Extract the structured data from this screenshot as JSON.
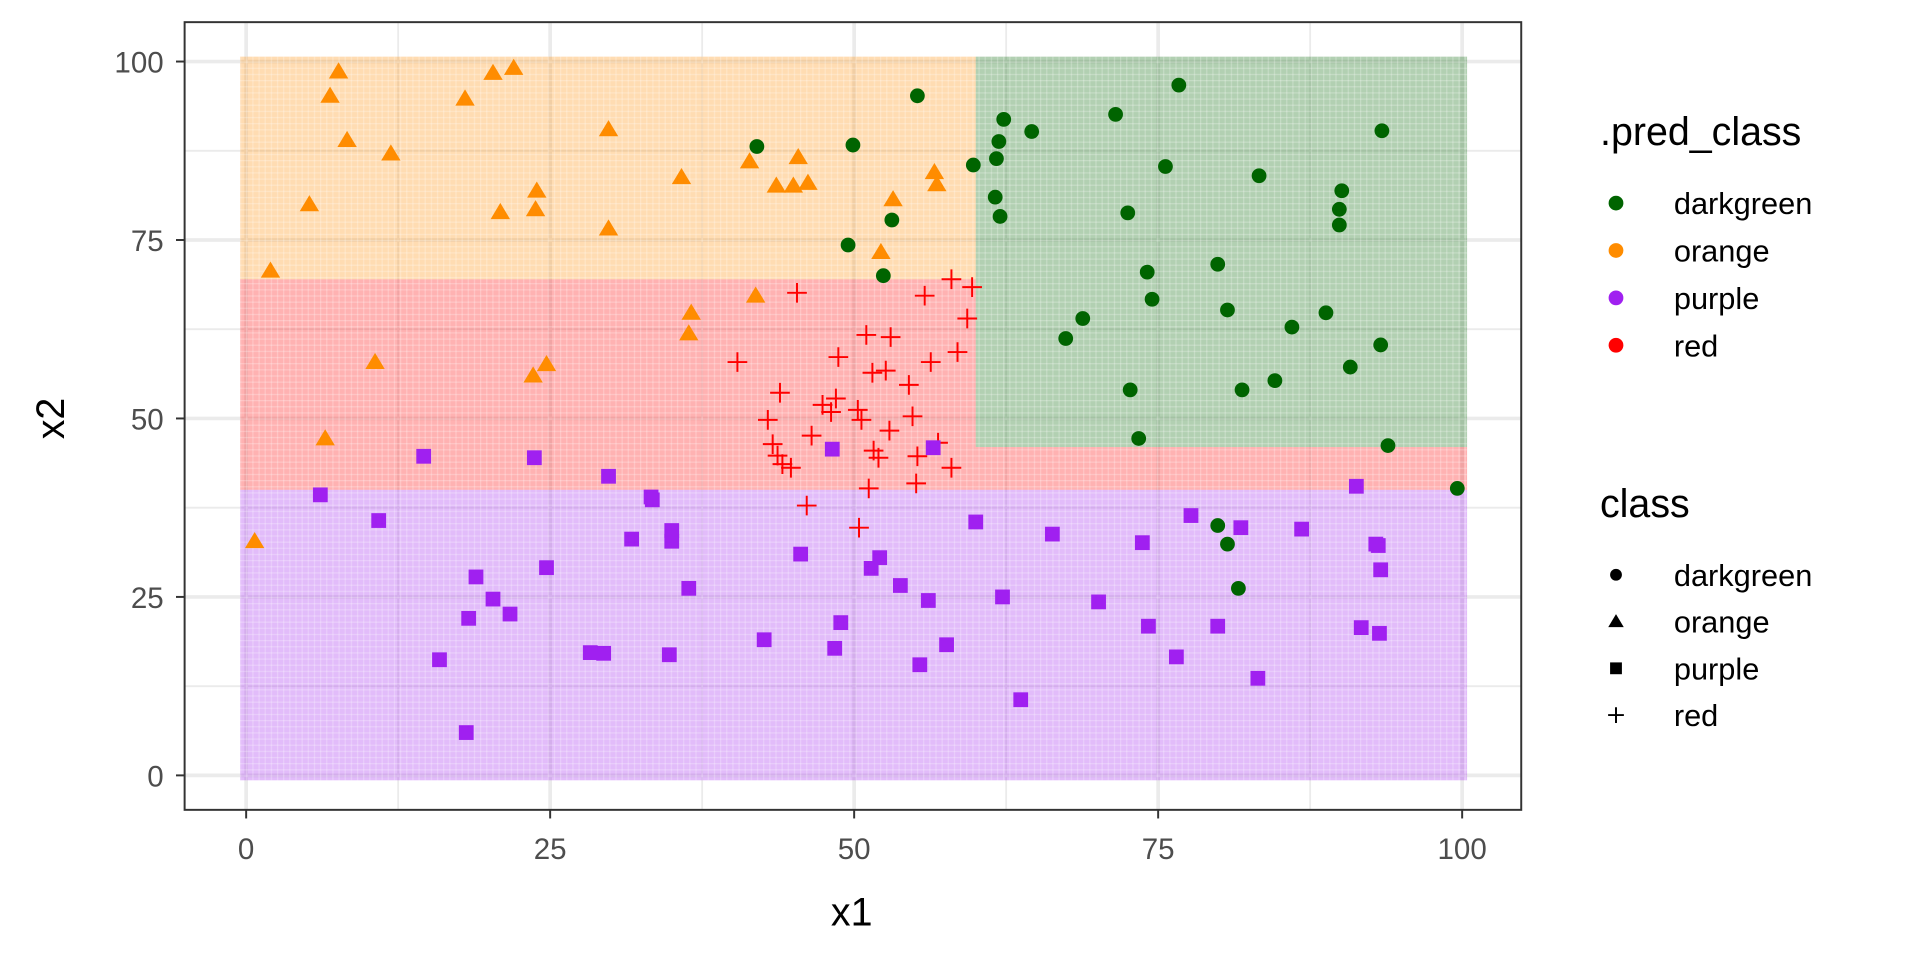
{
  "chart_data": {
    "type": "scatter",
    "xlabel": "x1",
    "ylabel": "x2",
    "xlim": [
      0,
      100
    ],
    "ylim": [
      0,
      100
    ],
    "x_ticks": [
      "0",
      "25",
      "50",
      "75",
      "100"
    ],
    "y_ticks": [
      "0",
      "25",
      "50",
      "75",
      "100"
    ],
    "grid": true,
    "colors": {
      "darkgreen": "#006400",
      "orange": "#FF8C00",
      "purple": "#A020F0",
      "red": "#FF0000"
    },
    "regions": [
      {
        "pred_class": "orange",
        "x": [
          0,
          60
        ],
        "y": [
          69.5,
          100
        ]
      },
      {
        "pred_class": "red",
        "x": [
          0,
          60
        ],
        "y": [
          40,
          69.5
        ]
      },
      {
        "pred_class": "darkgreen",
        "x": [
          60,
          100
        ],
        "y": [
          46,
          100
        ]
      },
      {
        "pred_class": "red",
        "x": [
          60,
          100
        ],
        "y": [
          40,
          46
        ]
      },
      {
        "pred_class": "purple",
        "x": [
          0,
          100
        ],
        "y": [
          0,
          40
        ]
      }
    ],
    "legend_pred_class": {
      "title": ".pred_class",
      "position": "right",
      "items": [
        "darkgreen",
        "orange",
        "purple",
        "red"
      ]
    },
    "legend_class": {
      "title": "class",
      "position": "right",
      "items": [
        "darkgreen",
        "orange",
        "purple",
        "red"
      ],
      "shapes": [
        "circle",
        "triangle",
        "square",
        "cross"
      ]
    },
    "series": [
      {
        "name": "darkgreen",
        "pred": "darkgreen",
        "shape": "circle",
        "points": [
          [
            42.0,
            88.1
          ],
          [
            49.9,
            88.3
          ],
          [
            55.2,
            95.2
          ],
          [
            53.1,
            77.8
          ],
          [
            49.5,
            74.3
          ],
          [
            52.4,
            70.0
          ],
          [
            59.8,
            85.5
          ],
          [
            61.7,
            86.4
          ],
          [
            61.9,
            88.8
          ],
          [
            62.3,
            91.9
          ],
          [
            64.6,
            90.2
          ],
          [
            61.6,
            81.0
          ],
          [
            62.0,
            78.3
          ],
          [
            71.5,
            92.6
          ],
          [
            76.7,
            96.7
          ],
          [
            75.6,
            85.3
          ],
          [
            83.3,
            84.0
          ],
          [
            90.1,
            81.9
          ],
          [
            89.9,
            79.3
          ],
          [
            89.9,
            77.1
          ],
          [
            93.4,
            90.3
          ],
          [
            72.5,
            78.8
          ],
          [
            74.1,
            70.5
          ],
          [
            79.9,
            71.6
          ],
          [
            74.5,
            66.7
          ],
          [
            80.7,
            65.2
          ],
          [
            68.8,
            64.0
          ],
          [
            67.4,
            61.2
          ],
          [
            86.0,
            62.8
          ],
          [
            88.8,
            64.8
          ],
          [
            93.3,
            60.3
          ],
          [
            90.8,
            57.2
          ],
          [
            72.7,
            54.0
          ],
          [
            81.9,
            54.0
          ],
          [
            84.6,
            55.3
          ],
          [
            73.4,
            47.2
          ],
          [
            93.9,
            46.2
          ],
          [
            99.6,
            40.2
          ],
          [
            79.9,
            35.0
          ],
          [
            80.7,
            32.4
          ],
          [
            81.6,
            26.2
          ]
        ]
      },
      {
        "name": "orange",
        "pred": "orange",
        "shape": "triangle",
        "points": [
          [
            7.6,
            98.6
          ],
          [
            6.9,
            95.2
          ],
          [
            8.3,
            89.0
          ],
          [
            18.0,
            94.8
          ],
          [
            20.3,
            98.4
          ],
          [
            22.0,
            99.1
          ],
          [
            11.9,
            87.1
          ],
          [
            5.2,
            80.0
          ],
          [
            20.9,
            78.9
          ],
          [
            23.9,
            81.9
          ],
          [
            23.8,
            79.3
          ],
          [
            29.8,
            90.5
          ],
          [
            29.8,
            76.6
          ],
          [
            2.0,
            70.7
          ],
          [
            35.8,
            83.8
          ],
          [
            41.4,
            86.0
          ],
          [
            43.6,
            82.6
          ],
          [
            45.4,
            86.6
          ],
          [
            45.0,
            82.6
          ],
          [
            46.2,
            83.0
          ],
          [
            53.2,
            80.7
          ],
          [
            52.2,
            73.3
          ],
          [
            56.8,
            82.8
          ],
          [
            56.6,
            84.5
          ],
          [
            41.9,
            67.2
          ],
          [
            36.6,
            64.8
          ],
          [
            36.4,
            61.9
          ],
          [
            10.6,
            57.9
          ],
          [
            24.7,
            57.6
          ],
          [
            23.6,
            56.0
          ],
          [
            6.5,
            47.2
          ],
          [
            0.7,
            32.8
          ]
        ]
      },
      {
        "name": "red",
        "pred": "red",
        "shape": "cross",
        "points": [
          [
            45.3,
            67.6
          ],
          [
            55.8,
            67.2
          ],
          [
            58.0,
            69.5
          ],
          [
            59.7,
            68.4
          ],
          [
            59.3,
            64.0
          ],
          [
            51.0,
            61.7
          ],
          [
            53.0,
            61.4
          ],
          [
            48.7,
            58.6
          ],
          [
            56.3,
            57.9
          ],
          [
            58.5,
            59.3
          ],
          [
            40.4,
            57.9
          ],
          [
            43.9,
            53.6
          ],
          [
            51.5,
            56.4
          ],
          [
            52.6,
            56.7
          ],
          [
            54.5,
            54.7
          ],
          [
            47.4,
            51.9
          ],
          [
            48.5,
            52.8
          ],
          [
            48.1,
            50.9
          ],
          [
            50.3,
            51.2
          ],
          [
            50.6,
            49.8
          ],
          [
            42.9,
            49.8
          ],
          [
            54.8,
            50.3
          ],
          [
            52.9,
            48.3
          ],
          [
            43.3,
            46.4
          ],
          [
            43.7,
            44.8
          ],
          [
            46.5,
            47.6
          ],
          [
            51.6,
            45.5
          ],
          [
            44.1,
            43.6
          ],
          [
            44.8,
            43.1
          ],
          [
            52.0,
            44.5
          ],
          [
            58.0,
            43.1
          ],
          [
            55.2,
            44.7
          ],
          [
            55.1,
            40.9
          ],
          [
            51.2,
            40.2
          ],
          [
            46.1,
            37.8
          ],
          [
            50.4,
            34.7
          ],
          [
            56.9,
            46.6
          ]
        ]
      },
      {
        "name": "purple",
        "pred": "purple",
        "shape": "square",
        "points": [
          [
            14.6,
            44.7
          ],
          [
            23.7,
            44.5
          ],
          [
            6.1,
            39.3
          ],
          [
            10.9,
            35.7
          ],
          [
            29.8,
            41.9
          ],
          [
            33.3,
            39.0
          ],
          [
            33.4,
            38.6
          ],
          [
            48.2,
            45.7
          ],
          [
            56.5,
            45.9
          ],
          [
            35.0,
            34.3
          ],
          [
            35.0,
            32.8
          ],
          [
            31.7,
            33.1
          ],
          [
            60.0,
            35.5
          ],
          [
            66.3,
            33.8
          ],
          [
            77.7,
            36.4
          ],
          [
            81.8,
            34.7
          ],
          [
            86.8,
            34.5
          ],
          [
            91.3,
            40.5
          ],
          [
            92.9,
            32.4
          ],
          [
            93.1,
            32.2
          ],
          [
            93.3,
            28.8
          ],
          [
            73.7,
            32.6
          ],
          [
            45.6,
            31.0
          ],
          [
            52.1,
            30.5
          ],
          [
            51.4,
            29.0
          ],
          [
            53.8,
            26.6
          ],
          [
            24.7,
            29.1
          ],
          [
            36.4,
            26.2
          ],
          [
            18.9,
            27.8
          ],
          [
            20.3,
            24.7
          ],
          [
            21.7,
            22.6
          ],
          [
            18.3,
            22.0
          ],
          [
            15.9,
            16.2
          ],
          [
            28.3,
            17.2
          ],
          [
            29.4,
            17.1
          ],
          [
            34.8,
            16.9
          ],
          [
            42.6,
            19.0
          ],
          [
            48.9,
            21.4
          ],
          [
            48.4,
            17.8
          ],
          [
            56.1,
            24.5
          ],
          [
            62.2,
            25.0
          ],
          [
            70.1,
            24.3
          ],
          [
            57.6,
            18.3
          ],
          [
            55.4,
            15.5
          ],
          [
            74.2,
            20.9
          ],
          [
            79.9,
            20.9
          ],
          [
            76.5,
            16.6
          ],
          [
            91.7,
            20.7
          ],
          [
            93.2,
            19.9
          ],
          [
            83.2,
            13.6
          ],
          [
            63.7,
            10.6
          ],
          [
            18.1,
            6.0
          ]
        ]
      }
    ]
  }
}
